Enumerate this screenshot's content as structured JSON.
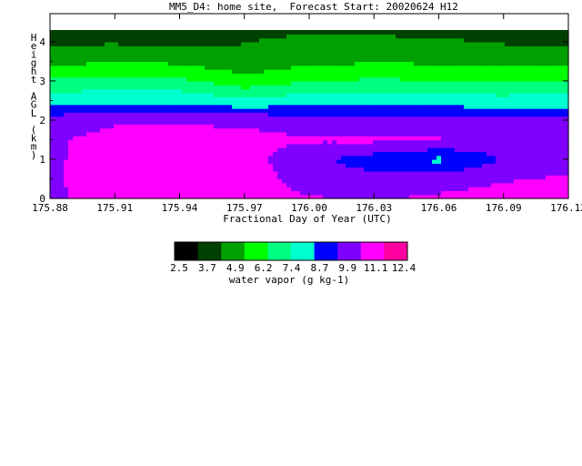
{
  "chart_data": {
    "type": "heatmap",
    "subtype": "filled-contour",
    "title": "MM5_D4: home site,  Forecast Start: 20020624 H12",
    "xlabel": "Fractional Day of Year (UTC)",
    "ylabel": "Height AGL (km)",
    "ylabel_letters": [
      "H",
      "e",
      "i",
      "g",
      "h",
      "t",
      "",
      "A",
      "G",
      "L",
      "",
      "(",
      "k",
      "m",
      ")"
    ],
    "xlim": [
      175.88,
      176.12
    ],
    "ylim": [
      0,
      4.3
    ],
    "x_ticks": [
      175.88,
      175.91,
      175.94,
      175.97,
      176.0,
      176.03,
      176.06,
      176.09,
      176.12
    ],
    "x_tick_labels": [
      "175.88",
      "175.91",
      "175.94",
      "175.97",
      "176.00",
      "176.03",
      "176.06",
      "176.09",
      "176.12"
    ],
    "y_ticks": [
      0,
      1,
      2,
      3,
      4
    ],
    "y_tick_labels": [
      "0",
      "1",
      "2",
      "3",
      "4"
    ],
    "x": [
      175.88,
      175.91,
      175.94,
      175.97,
      176.0,
      176.03,
      176.06,
      176.09,
      176.12
    ],
    "z_levels_km": [
      0,
      0.5,
      1,
      1.5,
      2,
      2.5,
      3,
      3.5,
      4,
      4.3
    ],
    "values_g_per_kg": [
      [
        11.0,
        11.3,
        11.5,
        11.5,
        11.2,
        11.0,
        11.3,
        11.6,
        11.8
      ],
      [
        11.0,
        11.5,
        11.6,
        11.7,
        10.6,
        10.3,
        10.6,
        11.0,
        11.3
      ],
      [
        11.0,
        11.4,
        11.5,
        11.6,
        10.2,
        9.3,
        8.4,
        10.0,
        10.3
      ],
      [
        11.0,
        11.4,
        11.5,
        11.4,
        11.2,
        11.3,
        11.2,
        10.4,
        10.3
      ],
      [
        10.5,
        11.0,
        11.0,
        10.9,
        10.6,
        10.6,
        10.5,
        10.3,
        10.3
      ],
      [
        8.2,
        8.3,
        8.4,
        7.6,
        8.2,
        8.2,
        8.0,
        7.9,
        8.0
      ],
      [
        6.5,
        6.6,
        6.5,
        5.5,
        6.2,
        6.4,
        6.3,
        6.2,
        6.3
      ],
      [
        4.6,
        4.8,
        4.7,
        3.9,
        4.6,
        4.8,
        4.7,
        4.6,
        4.6
      ],
      [
        3.5,
        3.6,
        3.3,
        3.7,
        4.1,
        4.0,
        3.9,
        3.6,
        3.5
      ],
      [
        3.0,
        2.9,
        2.5,
        3.2,
        3.6,
        3.5,
        3.3,
        3.1,
        3.0
      ]
    ],
    "colorbar": {
      "label": "water vapor (g kg-1)",
      "tick_labels": [
        "2.5",
        "3.7",
        "4.9",
        "6.2",
        "7.4",
        "8.7",
        "9.9",
        "11.1",
        "12.4"
      ],
      "colors": [
        "#000000",
        "#004000",
        "#00a000",
        "#00ff00",
        "#00ff80",
        "#00ffd0",
        "#0000ff",
        "#8000ff",
        "#ff00ff",
        "#ff00a0"
      ]
    }
  }
}
